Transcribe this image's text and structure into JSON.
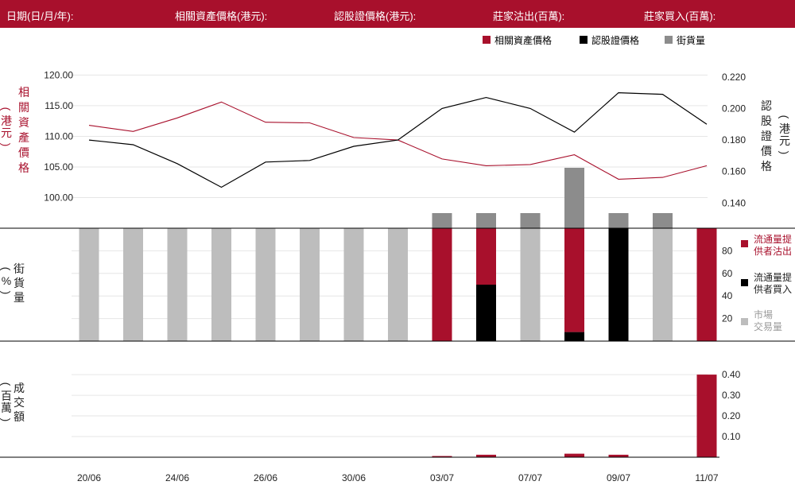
{
  "header": {
    "date": "日期(日/月/年):",
    "underlying_price": "相關資產價格(港元):",
    "warrant_price": "認股證價格(港元):",
    "issuer_sold": "莊家沽出(百萬):",
    "issuer_bought": "莊家買入(百萬):"
  },
  "legend_top": [
    "相關資產價格",
    "認股證價格",
    "街貨量"
  ],
  "legend_mid": [
    "流通量提供者沽出",
    "流通量提供者買入",
    "市場交易量"
  ],
  "colors": {
    "red": "#a8102c",
    "black": "#000000",
    "dark_gray": "#8c8c8c",
    "light_gray": "#bdbdbd",
    "header_bg": "#a8102c"
  },
  "axis_labels": {
    "top_left": "相關資產價格",
    "top_left_unit": "(港元)",
    "top_right": "認股證價格",
    "top_right_unit": "(港元)",
    "mid_left": "街貨量",
    "mid_left_unit": "(%)",
    "bottom_left": "成交額",
    "bottom_left_unit": "(百萬)"
  },
  "chart_data": {
    "type": "line",
    "x_ticks": [
      "20/06",
      "24/06",
      "26/06",
      "30/06",
      "03/07",
      "07/07",
      "09/07",
      "11/07"
    ],
    "price": {
      "left_axis": {
        "ticks": [
          "120.00",
          "115.00",
          "110.00",
          "105.00",
          "100.00"
        ],
        "range": [
          95,
          122
        ]
      },
      "right_axis": {
        "ticks": [
          "0.220",
          "0.200",
          "0.180",
          "0.160",
          "0.140"
        ],
        "range": [
          0.124,
          0.229
        ]
      },
      "series": [
        {
          "name": "相關資產價格",
          "axis": "left",
          "color": "#a8102c",
          "values": [
            111.8,
            110.8,
            113.0,
            115.6,
            112.3,
            112.2,
            109.8,
            109.4,
            106.3,
            105.2,
            105.4,
            107.0,
            103.0,
            103.3,
            105.2
          ]
        },
        {
          "name": "認股證價格",
          "axis": "right",
          "color": "#000000",
          "values": [
            0.18,
            0.177,
            0.165,
            0.15,
            0.166,
            0.167,
            0.176,
            0.18,
            0.2,
            0.207,
            0.2,
            0.185,
            0.21,
            0.209,
            0.19
          ]
        }
      ],
      "outstanding_bars": [
        null,
        null,
        null,
        null,
        null,
        null,
        null,
        null,
        1,
        1,
        1,
        4,
        1,
        1,
        null
      ]
    },
    "volume_share": {
      "ticks": [
        "80",
        "60",
        "40",
        "20"
      ],
      "range": [
        0,
        100
      ],
      "issuer_sold": [
        0,
        0,
        0,
        0,
        0,
        0,
        0,
        0,
        100,
        50,
        0,
        92,
        0,
        0,
        100
      ],
      "issuer_bought": [
        0,
        0,
        0,
        0,
        0,
        0,
        0,
        0,
        0,
        50,
        0,
        8,
        100,
        0,
        0
      ],
      "market": [
        100,
        100,
        100,
        100,
        100,
        100,
        100,
        100,
        0,
        0,
        100,
        0,
        0,
        100,
        0
      ]
    },
    "turnover": {
      "ticks": [
        "0.40",
        "0.30",
        "0.20",
        "0.10"
      ],
      "range": [
        0,
        0.435
      ],
      "values": [
        0,
        0,
        0,
        0,
        0,
        0,
        0,
        0,
        0.005,
        0.012,
        0,
        0.017,
        0.012,
        0,
        0.4
      ]
    }
  }
}
